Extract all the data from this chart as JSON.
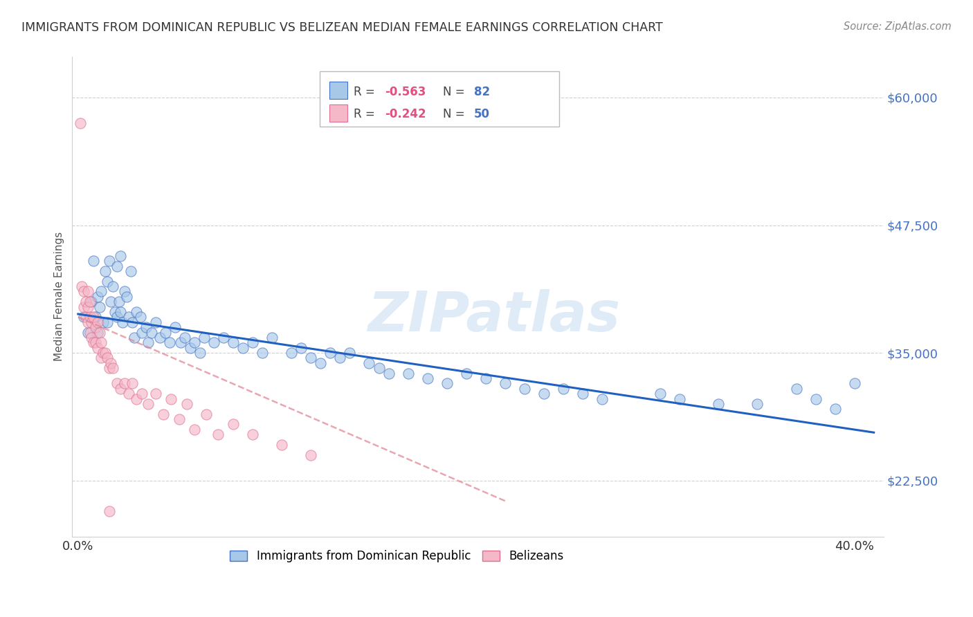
{
  "title": "IMMIGRANTS FROM DOMINICAN REPUBLIC VS BELIZEAN MEDIAN FEMALE EARNINGS CORRELATION CHART",
  "source": "Source: ZipAtlas.com",
  "ylabel": "Median Female Earnings",
  "yticks": [
    22500,
    35000,
    47500,
    60000
  ],
  "ytick_labels": [
    "$22,500",
    "$35,000",
    "$47,500",
    "$60,000"
  ],
  "ylim": [
    17000,
    64000
  ],
  "xlim": [
    -0.003,
    0.415
  ],
  "legend_blue_r": "-0.563",
  "legend_blue_n": "82",
  "legend_pink_r": "-0.242",
  "legend_pink_n": "50",
  "watermark": "ZIPatlas",
  "blue_fill": "#a8c8e8",
  "blue_edge": "#4472c4",
  "pink_fill": "#f4b8c8",
  "pink_edge": "#e07090",
  "blue_line_color": "#2060c0",
  "pink_line_color": "#e08090",
  "grid_color": "#d0d0d0",
  "title_color": "#333333",
  "source_color": "#888888",
  "ylabel_color": "#555555",
  "ytick_color": "#4472c4",
  "xtick_color": "#333333",
  "blue_scatter_x": [
    0.003,
    0.005,
    0.007,
    0.008,
    0.009,
    0.01,
    0.01,
    0.011,
    0.012,
    0.013,
    0.014,
    0.015,
    0.015,
    0.016,
    0.017,
    0.018,
    0.019,
    0.02,
    0.02,
    0.021,
    0.022,
    0.022,
    0.023,
    0.024,
    0.025,
    0.026,
    0.027,
    0.028,
    0.029,
    0.03,
    0.032,
    0.033,
    0.035,
    0.036,
    0.038,
    0.04,
    0.042,
    0.045,
    0.047,
    0.05,
    0.053,
    0.055,
    0.058,
    0.06,
    0.063,
    0.065,
    0.07,
    0.075,
    0.08,
    0.085,
    0.09,
    0.095,
    0.1,
    0.11,
    0.115,
    0.12,
    0.125,
    0.13,
    0.135,
    0.14,
    0.15,
    0.155,
    0.16,
    0.17,
    0.18,
    0.19,
    0.2,
    0.21,
    0.22,
    0.23,
    0.24,
    0.25,
    0.26,
    0.27,
    0.3,
    0.31,
    0.33,
    0.35,
    0.37,
    0.38,
    0.39,
    0.4
  ],
  "blue_scatter_y": [
    38500,
    37000,
    40000,
    44000,
    38500,
    40500,
    37000,
    39500,
    41000,
    38000,
    43000,
    42000,
    38000,
    44000,
    40000,
    41500,
    39000,
    43500,
    38500,
    40000,
    44500,
    39000,
    38000,
    41000,
    40500,
    38500,
    43000,
    38000,
    36500,
    39000,
    38500,
    37000,
    37500,
    36000,
    37000,
    38000,
    36500,
    37000,
    36000,
    37500,
    36000,
    36500,
    35500,
    36000,
    35000,
    36500,
    36000,
    36500,
    36000,
    35500,
    36000,
    35000,
    36500,
    35000,
    35500,
    34500,
    34000,
    35000,
    34500,
    35000,
    34000,
    33500,
    33000,
    33000,
    32500,
    32000,
    33000,
    32500,
    32000,
    31500,
    31000,
    31500,
    31000,
    30500,
    31000,
    30500,
    30000,
    30000,
    31500,
    30500,
    29500,
    32000
  ],
  "pink_scatter_x": [
    0.001,
    0.002,
    0.003,
    0.003,
    0.004,
    0.004,
    0.005,
    0.005,
    0.005,
    0.006,
    0.006,
    0.006,
    0.007,
    0.007,
    0.008,
    0.008,
    0.009,
    0.009,
    0.01,
    0.01,
    0.011,
    0.012,
    0.012,
    0.013,
    0.014,
    0.015,
    0.016,
    0.017,
    0.018,
    0.02,
    0.022,
    0.024,
    0.026,
    0.028,
    0.03,
    0.033,
    0.036,
    0.04,
    0.044,
    0.048,
    0.052,
    0.056,
    0.06,
    0.066,
    0.072,
    0.08,
    0.09,
    0.105,
    0.12,
    0.016
  ],
  "pink_scatter_y": [
    57500,
    41500,
    41000,
    39500,
    40000,
    38500,
    41000,
    39500,
    38000,
    40000,
    38500,
    37000,
    38000,
    36500,
    38500,
    36000,
    37500,
    36000,
    38000,
    35500,
    37000,
    36000,
    34500,
    35000,
    35000,
    34500,
    33500,
    34000,
    33500,
    32000,
    31500,
    32000,
    31000,
    32000,
    30500,
    31000,
    30000,
    31000,
    29000,
    30500,
    28500,
    30000,
    27500,
    29000,
    27000,
    28000,
    27000,
    26000,
    25000,
    19500
  ],
  "blue_trend_x": [
    0.0,
    0.41
  ],
  "blue_trend_y": [
    38800,
    27200
  ],
  "pink_trend_x": [
    0.0,
    0.22
  ],
  "pink_trend_y": [
    38500,
    20500
  ]
}
